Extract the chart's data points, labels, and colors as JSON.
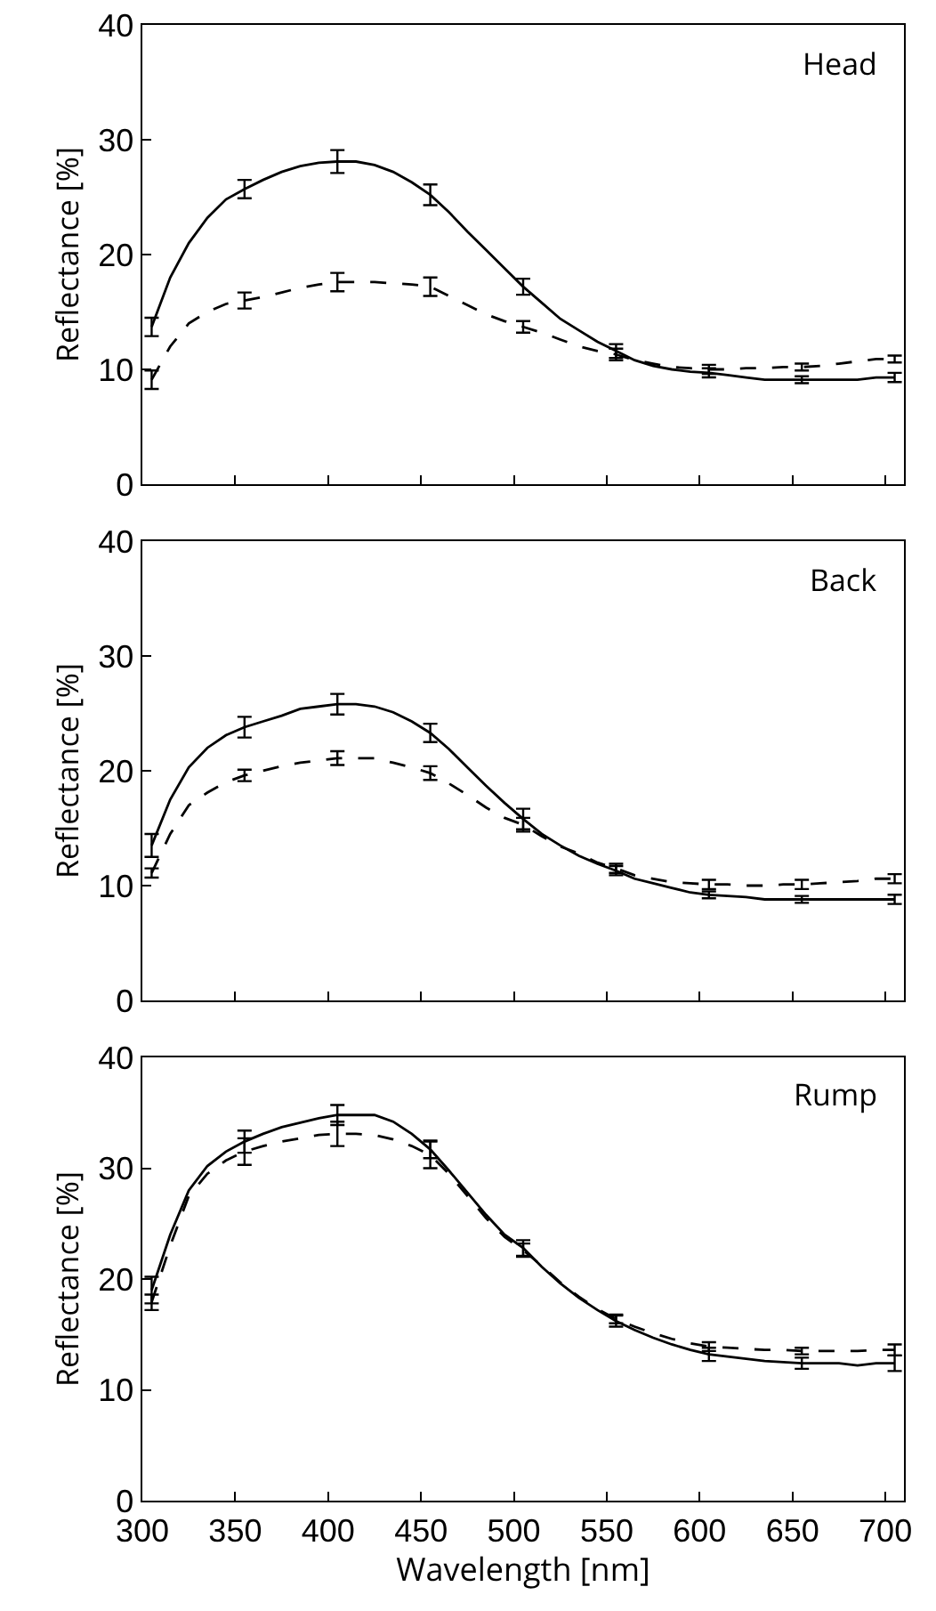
{
  "chart_data": [
    {
      "type": "line",
      "annotations": [
        "Head"
      ],
      "ylabel": "Reflectance [%]",
      "xlim": [
        300,
        710
      ],
      "xticks": [
        300,
        350,
        400,
        450,
        500,
        550,
        600,
        650,
        700
      ],
      "ylim": [
        0,
        40
      ],
      "yticks": [
        0,
        10,
        20,
        30,
        40
      ],
      "tick_labels": "y",
      "grid": false,
      "marker": "none",
      "x": [
        305,
        315,
        325,
        335,
        345,
        355,
        365,
        375,
        385,
        395,
        405,
        415,
        425,
        435,
        445,
        455,
        465,
        475,
        485,
        495,
        505,
        515,
        525,
        535,
        545,
        555,
        565,
        575,
        585,
        595,
        605,
        615,
        625,
        635,
        645,
        655,
        665,
        675,
        685,
        695,
        705
      ],
      "series": [
        {
          "color": "#000000",
          "line_style": "solid",
          "values": [
            13.7,
            18,
            21,
            23.2,
            24.8,
            25.7,
            26.5,
            27.2,
            27.7,
            28,
            28.1,
            28.1,
            27.8,
            27.2,
            26.3,
            25.2,
            23.7,
            22,
            20.4,
            18.8,
            17.2,
            15.8,
            14.4,
            13.4,
            12.4,
            11.6,
            10.8,
            10.3,
            10,
            9.8,
            9.7,
            9.5,
            9.3,
            9.1,
            9.1,
            9.1,
            9.1,
            9.1,
            9.1,
            9.3,
            9.3
          ],
          "errors": [
            0.8,
            null,
            null,
            null,
            null,
            0.8,
            null,
            null,
            null,
            null,
            1.0,
            null,
            null,
            null,
            null,
            0.9,
            null,
            null,
            null,
            null,
            0.7,
            null,
            null,
            null,
            null,
            0.6,
            null,
            null,
            null,
            null,
            0.4,
            null,
            null,
            null,
            null,
            0.3,
            null,
            null,
            null,
            null,
            0.4
          ]
        },
        {
          "color": "#000000",
          "line_style": "dashed",
          "values": [
            9.1,
            12,
            14,
            15,
            15.7,
            16,
            16.3,
            16.7,
            17.1,
            17.4,
            17.6,
            17.6,
            17.6,
            17.5,
            17.4,
            17.2,
            16.4,
            15.6,
            14.8,
            14.2,
            13.7,
            13.2,
            12.6,
            12,
            11.6,
            11.3,
            10.8,
            10.5,
            10.2,
            10.1,
            10,
            10,
            10.1,
            10.1,
            10.2,
            10.2,
            10.3,
            10.5,
            10.7,
            10.9,
            10.9
          ],
          "errors": [
            0.8,
            null,
            null,
            null,
            null,
            0.7,
            null,
            null,
            null,
            null,
            0.8,
            null,
            null,
            null,
            null,
            0.8,
            null,
            null,
            null,
            null,
            0.5,
            null,
            null,
            null,
            null,
            0.5,
            null,
            null,
            null,
            null,
            0.4,
            null,
            null,
            null,
            null,
            0.3,
            null,
            null,
            null,
            null,
            0.3
          ]
        }
      ]
    },
    {
      "type": "line",
      "annotations": [
        "Back"
      ],
      "ylabel": "Reflectance [%]",
      "xlim": [
        300,
        710
      ],
      "xticks": [
        300,
        350,
        400,
        450,
        500,
        550,
        600,
        650,
        700
      ],
      "ylim": [
        0,
        40
      ],
      "yticks": [
        0,
        10,
        20,
        30,
        40
      ],
      "tick_labels": "y",
      "grid": false,
      "marker": "none",
      "x": [
        305,
        315,
        325,
        335,
        345,
        355,
        365,
        375,
        385,
        395,
        405,
        415,
        425,
        435,
        445,
        455,
        465,
        475,
        485,
        495,
        505,
        515,
        525,
        535,
        545,
        555,
        565,
        575,
        585,
        595,
        605,
        615,
        625,
        635,
        645,
        655,
        665,
        675,
        685,
        695,
        705
      ],
      "series": [
        {
          "color": "#000000",
          "line_style": "solid",
          "values": [
            13.5,
            17.5,
            20.3,
            22,
            23.1,
            23.8,
            24.3,
            24.8,
            25.4,
            25.6,
            25.8,
            25.8,
            25.6,
            25.1,
            24.3,
            23.3,
            21.9,
            20.3,
            18.7,
            17.2,
            15.8,
            14.5,
            13.5,
            12.6,
            11.9,
            11.3,
            10.6,
            10.2,
            9.8,
            9.4,
            9.2,
            9.1,
            9,
            8.8,
            8.8,
            8.8,
            8.8,
            8.8,
            8.8,
            8.8,
            8.8
          ],
          "errors": [
            1.0,
            null,
            null,
            null,
            null,
            0.9,
            null,
            null,
            null,
            null,
            0.9,
            null,
            null,
            null,
            null,
            0.8,
            null,
            null,
            null,
            null,
            0.9,
            null,
            null,
            null,
            null,
            0.4,
            null,
            null,
            null,
            null,
            0.3,
            null,
            null,
            null,
            null,
            0.3,
            null,
            null,
            null,
            null,
            0.4
          ]
        },
        {
          "color": "#000000",
          "line_style": "dashed",
          "values": [
            11.1,
            14.5,
            17,
            18.1,
            19,
            19.6,
            20,
            20.4,
            20.7,
            20.9,
            21.1,
            21.1,
            21.1,
            20.7,
            20.3,
            19.8,
            18.9,
            17.9,
            16.8,
            15.9,
            15.3,
            14.3,
            13.4,
            12.8,
            12,
            11.5,
            10.9,
            10.6,
            10.3,
            10.2,
            10.1,
            10.1,
            10,
            10,
            10.1,
            10.1,
            10.2,
            10.3,
            10.4,
            10.6,
            10.6
          ],
          "errors": [
            0.4,
            null,
            null,
            null,
            null,
            0.5,
            null,
            null,
            null,
            null,
            0.6,
            null,
            null,
            null,
            null,
            0.6,
            null,
            null,
            null,
            null,
            0.6,
            null,
            null,
            null,
            null,
            0.4,
            null,
            null,
            null,
            null,
            0.4,
            null,
            null,
            null,
            null,
            0.4,
            null,
            null,
            null,
            null,
            0.4
          ]
        }
      ]
    },
    {
      "type": "line",
      "annotations": [
        "Rump"
      ],
      "xlabel": "Wavelength [nm]",
      "ylabel": "Reflectance [%]",
      "xlim": [
        300,
        710
      ],
      "xticks": [
        300,
        350,
        400,
        450,
        500,
        550,
        600,
        650,
        700
      ],
      "ylim": [
        0,
        40
      ],
      "yticks": [
        0,
        10,
        20,
        30,
        40
      ],
      "grid": false,
      "marker": "none",
      "x": [
        305,
        315,
        325,
        335,
        345,
        355,
        365,
        375,
        385,
        395,
        405,
        415,
        425,
        435,
        445,
        455,
        465,
        475,
        485,
        495,
        505,
        515,
        525,
        535,
        545,
        555,
        565,
        575,
        585,
        595,
        605,
        615,
        625,
        635,
        645,
        655,
        665,
        675,
        685,
        695,
        705
      ],
      "series": [
        {
          "color": "#000000",
          "line_style": "solid",
          "values": [
            19,
            24,
            28,
            30.2,
            31.5,
            32.4,
            33.1,
            33.7,
            34.1,
            34.5,
            34.8,
            34.8,
            34.8,
            34.2,
            33.1,
            31.7,
            29.8,
            27.8,
            25.8,
            24,
            22.8,
            21.1,
            19.6,
            18.3,
            17.2,
            16.2,
            15.4,
            14.7,
            14.1,
            13.6,
            13.2,
            13,
            12.8,
            12.6,
            12.5,
            12.4,
            12.4,
            12.4,
            12.2,
            12.4,
            12.4
          ],
          "errors": [
            1.2,
            null,
            null,
            null,
            null,
            1.0,
            null,
            null,
            null,
            null,
            0.9,
            null,
            null,
            null,
            null,
            0.8,
            null,
            null,
            null,
            null,
            0.7,
            null,
            null,
            null,
            null,
            0.5,
            null,
            null,
            null,
            null,
            0.6,
            null,
            null,
            null,
            null,
            0.5,
            null,
            null,
            null,
            null,
            0.7
          ]
        },
        {
          "color": "#000000",
          "line_style": "dashed",
          "values": [
            17.9,
            23,
            27.5,
            29.5,
            30.7,
            31.5,
            32,
            32.4,
            32.7,
            33,
            33.1,
            33.1,
            33,
            32.6,
            32,
            31.2,
            29.5,
            27.5,
            25.5,
            23.8,
            22.6,
            21.2,
            19.7,
            18.4,
            17.3,
            16.4,
            15.7,
            15.1,
            14.6,
            14.2,
            13.9,
            13.8,
            13.7,
            13.6,
            13.6,
            13.5,
            13.5,
            13.5,
            13.5,
            13.6,
            13.6
          ],
          "errors": [
            0.7,
            null,
            null,
            null,
            null,
            1.2,
            null,
            null,
            null,
            null,
            1.1,
            null,
            null,
            null,
            null,
            1.2,
            null,
            null,
            null,
            null,
            0.6,
            null,
            null,
            null,
            null,
            0.4,
            null,
            null,
            null,
            null,
            0.4,
            null,
            null,
            null,
            null,
            0.3,
            null,
            null,
            null,
            null,
            0.5
          ]
        }
      ]
    }
  ]
}
